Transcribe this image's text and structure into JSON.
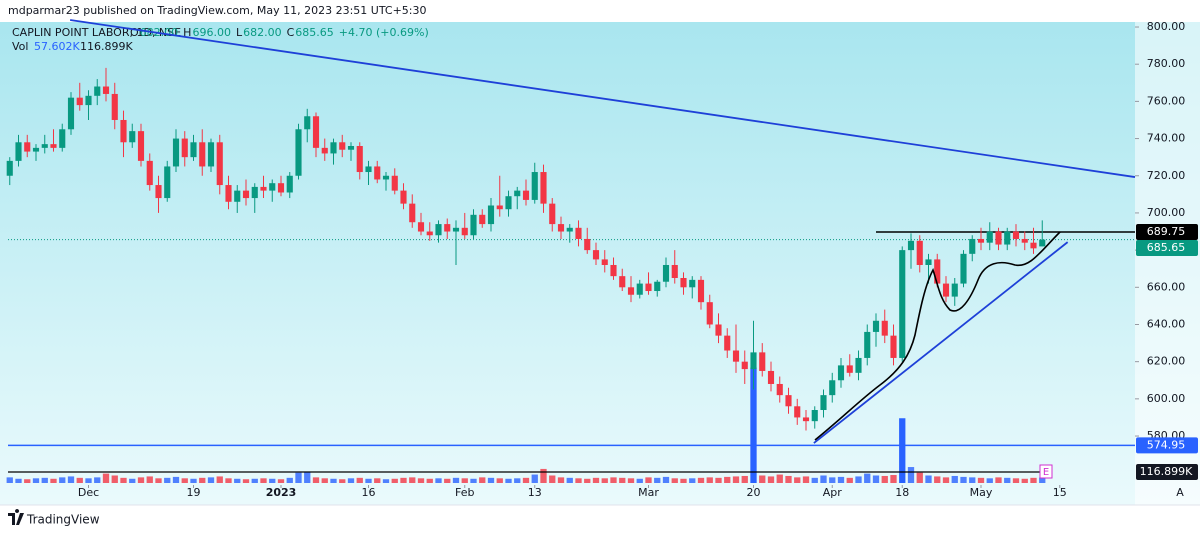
{
  "header": {
    "publisher": "mdparmar23 published on TradingView.com, May 11, 2023 23:51 UTC+5:30"
  },
  "chart_data": {
    "type": "candlestick",
    "title": "CAPLIN POINT LABOR, 1D, NSE",
    "ohlc_legend": [
      {
        "key": "O",
        "value": "682.00"
      },
      {
        "key": "H",
        "value": "696.00"
      },
      {
        "key": "L",
        "value": "682.00"
      },
      {
        "key": "C",
        "value": "685.65"
      }
    ],
    "change": "+4.70 (+0.69%)",
    "volume_legend": {
      "key": "Vol",
      "value": "57.602K",
      "ma": "116.899K"
    },
    "up_color": "#089981",
    "down_color": "#f23645",
    "candles": [
      [
        720,
        730,
        715,
        728
      ],
      [
        728,
        742,
        725,
        738
      ],
      [
        738,
        742,
        730,
        733
      ],
      [
        733,
        737,
        728,
        735
      ],
      [
        735,
        742,
        732,
        737
      ],
      [
        737,
        745,
        733,
        735
      ],
      [
        735,
        748,
        733,
        745
      ],
      [
        745,
        765,
        742,
        762
      ],
      [
        762,
        770,
        755,
        758
      ],
      [
        758,
        766,
        750,
        763
      ],
      [
        763,
        772,
        758,
        768
      ],
      [
        768,
        778,
        760,
        764
      ],
      [
        764,
        770,
        745,
        750
      ],
      [
        750,
        755,
        730,
        738
      ],
      [
        738,
        748,
        735,
        744
      ],
      [
        744,
        748,
        725,
        728
      ],
      [
        728,
        732,
        712,
        715
      ],
      [
        715,
        720,
        700,
        708
      ],
      [
        708,
        728,
        706,
        725
      ],
      [
        725,
        745,
        722,
        740
      ],
      [
        740,
        744,
        725,
        730
      ],
      [
        730,
        742,
        728,
        738
      ],
      [
        738,
        745,
        720,
        725
      ],
      [
        725,
        740,
        722,
        738
      ],
      [
        738,
        742,
        710,
        715
      ],
      [
        715,
        720,
        702,
        706
      ],
      [
        706,
        715,
        700,
        712
      ],
      [
        712,
        718,
        704,
        708
      ],
      [
        708,
        716,
        700,
        714
      ],
      [
        714,
        720,
        708,
        712
      ],
      [
        712,
        718,
        706,
        716
      ],
      [
        716,
        720,
        709,
        711
      ],
      [
        711,
        722,
        708,
        720
      ],
      [
        720,
        748,
        718,
        745
      ],
      [
        745,
        756,
        738,
        752
      ],
      [
        752,
        754,
        730,
        735
      ],
      [
        735,
        740,
        728,
        732
      ],
      [
        732,
        740,
        726,
        738
      ],
      [
        738,
        742,
        730,
        734
      ],
      [
        734,
        738,
        728,
        736
      ],
      [
        736,
        738,
        718,
        722
      ],
      [
        722,
        728,
        715,
        725
      ],
      [
        725,
        728,
        716,
        718
      ],
      [
        718,
        722,
        712,
        720
      ],
      [
        720,
        724,
        710,
        712
      ],
      [
        712,
        716,
        702,
        705
      ],
      [
        705,
        710,
        692,
        695
      ],
      [
        695,
        700,
        688,
        690
      ],
      [
        690,
        695,
        685,
        688
      ],
      [
        688,
        696,
        684,
        694
      ],
      [
        694,
        697,
        686,
        690
      ],
      [
        690,
        696,
        672,
        692
      ],
      [
        692,
        700,
        686,
        688
      ],
      [
        688,
        702,
        686,
        699
      ],
      [
        699,
        702,
        692,
        694
      ],
      [
        694,
        708,
        690,
        704
      ],
      [
        704,
        720,
        698,
        702
      ],
      [
        702,
        712,
        698,
        709
      ],
      [
        709,
        714,
        702,
        712
      ],
      [
        712,
        718,
        704,
        707
      ],
      [
        707,
        727,
        705,
        722
      ],
      [
        722,
        726,
        700,
        705
      ],
      [
        705,
        708,
        690,
        694
      ],
      [
        694,
        698,
        686,
        690
      ],
      [
        690,
        694,
        684,
        692
      ],
      [
        692,
        696,
        682,
        686
      ],
      [
        686,
        692,
        678,
        680
      ],
      [
        680,
        684,
        672,
        675
      ],
      [
        675,
        680,
        668,
        672
      ],
      [
        672,
        676,
        664,
        666
      ],
      [
        666,
        670,
        658,
        660
      ],
      [
        660,
        666,
        652,
        656
      ],
      [
        656,
        664,
        654,
        662
      ],
      [
        662,
        668,
        656,
        658
      ],
      [
        658,
        664,
        655,
        663
      ],
      [
        663,
        676,
        660,
        672
      ],
      [
        672,
        680,
        662,
        665
      ],
      [
        665,
        668,
        656,
        660
      ],
      [
        660,
        666,
        654,
        664
      ],
      [
        664,
        666,
        648,
        652
      ],
      [
        652,
        656,
        638,
        640
      ],
      [
        640,
        646,
        630,
        634
      ],
      [
        634,
        638,
        622,
        626
      ],
      [
        626,
        640,
        614,
        620
      ],
      [
        620,
        626,
        608,
        616
      ],
      [
        616,
        642,
        605,
        625
      ],
      [
        625,
        630,
        612,
        615
      ],
      [
        615,
        620,
        604,
        608
      ],
      [
        608,
        612,
        598,
        602
      ],
      [
        602,
        606,
        592,
        596
      ],
      [
        596,
        600,
        586,
        590
      ],
      [
        590,
        594,
        583,
        588
      ],
      [
        588,
        596,
        584,
        594
      ],
      [
        594,
        605,
        590,
        602
      ],
      [
        602,
        614,
        598,
        610
      ],
      [
        610,
        622,
        606,
        618
      ],
      [
        618,
        624,
        612,
        614
      ],
      [
        614,
        626,
        610,
        622
      ],
      [
        622,
        640,
        618,
        636
      ],
      [
        636,
        646,
        628,
        642
      ],
      [
        642,
        648,
        630,
        634
      ],
      [
        634,
        640,
        618,
        622
      ],
      [
        622,
        682,
        620,
        680
      ],
      [
        680,
        689,
        670,
        685
      ],
      [
        685,
        688,
        668,
        672
      ],
      [
        672,
        678,
        662,
        675
      ],
      [
        675,
        678,
        660,
        662
      ],
      [
        662,
        666,
        652,
        655
      ],
      [
        655,
        665,
        650,
        662
      ],
      [
        662,
        680,
        660,
        678
      ],
      [
        678,
        688,
        674,
        686
      ],
      [
        686,
        692,
        680,
        684
      ],
      [
        684,
        695,
        680,
        690
      ],
      [
        690,
        692,
        680,
        683
      ],
      [
        683,
        692,
        680,
        690
      ],
      [
        690,
        694,
        682,
        686
      ],
      [
        686,
        690,
        680,
        684
      ],
      [
        684,
        692,
        678,
        680.95
      ],
      [
        682,
        696,
        682,
        685.65
      ]
    ],
    "volume": {
      "values": [
        60,
        45,
        40,
        50,
        55,
        45,
        60,
        70,
        55,
        50,
        60,
        100,
        80,
        55,
        45,
        60,
        70,
        50,
        55,
        65,
        50,
        45,
        55,
        60,
        70,
        50,
        45,
        40,
        45,
        50,
        45,
        40,
        55,
        110,
        120,
        60,
        50,
        45,
        40,
        50,
        55,
        45,
        50,
        40,
        45,
        55,
        60,
        50,
        45,
        50,
        45,
        55,
        50,
        45,
        60,
        55,
        50,
        45,
        50,
        55,
        90,
        150,
        80,
        60,
        55,
        50,
        45,
        55,
        50,
        60,
        55,
        50,
        45,
        60,
        55,
        65,
        50,
        45,
        50,
        55,
        60,
        55,
        65,
        70,
        75,
        1230,
        80,
        70,
        90,
        75,
        60,
        70,
        55,
        80,
        60,
        65,
        55,
        70,
        100,
        80,
        75,
        85,
        690,
        170,
        110,
        80,
        70,
        60,
        75,
        65,
        60,
        55,
        50,
        60,
        55,
        50,
        45,
        55,
        57.602
      ],
      "up_color": "#2962ff",
      "down_color": "#f23645",
      "ylim": [
        0,
        1300
      ],
      "ma": {
        "value": 116.899,
        "label": "116.899K"
      }
    },
    "xlim": [
      -0.2,
      128.6
    ],
    "xticks": [
      {
        "value": 9,
        "label": "Dec"
      },
      {
        "value": 21,
        "label": "19"
      },
      {
        "value": 31,
        "label": "2023"
      },
      {
        "value": 41,
        "label": "16"
      },
      {
        "value": 52,
        "label": "Feb"
      },
      {
        "value": 60,
        "label": "13"
      },
      {
        "value": 73,
        "label": "Mar"
      },
      {
        "value": 85,
        "label": "20"
      },
      {
        "value": 94,
        "label": "Apr"
      },
      {
        "value": 102,
        "label": "18"
      },
      {
        "value": 111,
        "label": "May"
      },
      {
        "value": 120,
        "label": "15"
      }
    ],
    "ylim": [
      554.2,
      802.7
    ],
    "yticks": [
      {
        "value": 800,
        "label": "800.00"
      },
      {
        "value": 780,
        "label": "780.00"
      },
      {
        "value": 760,
        "label": "760.00"
      },
      {
        "value": 740,
        "label": "740.00"
      },
      {
        "value": 720,
        "label": "720.00"
      },
      {
        "value": 700,
        "label": "700.00"
      },
      {
        "value": 680,
        "label": "680.00"
      },
      {
        "value": 660,
        "label": "660.00"
      },
      {
        "value": 640,
        "label": "640.00"
      },
      {
        "value": 620,
        "label": "620.00"
      },
      {
        "value": 600,
        "label": "600.00"
      },
      {
        "value": 580,
        "label": "580.00"
      }
    ],
    "price_lines": [
      {
        "value": 685.65,
        "label": "685.65",
        "color": "#089981",
        "dotted": true,
        "from": -0.2
      },
      {
        "value": 689.75,
        "label": "689.75",
        "color": "#000000",
        "dotted": false,
        "from": 99
      },
      {
        "value": 574.95,
        "label": "574.95",
        "color": "#2962ff",
        "dotted": false,
        "from": -0.2
      }
    ],
    "trend_lines": [
      {
        "points": [
          [
            6.9,
            803.8
          ],
          [
            128.6,
            719.3
          ]
        ],
        "color": "#1e40d8"
      },
      {
        "points": [
          [
            91.9,
            576.2
          ],
          [
            120.9,
            684.3
          ]
        ],
        "color": "#1e40d8"
      }
    ]
  },
  "footer": {
    "brand": "TradingView",
    "scale_mode": "A",
    "event": "E"
  }
}
